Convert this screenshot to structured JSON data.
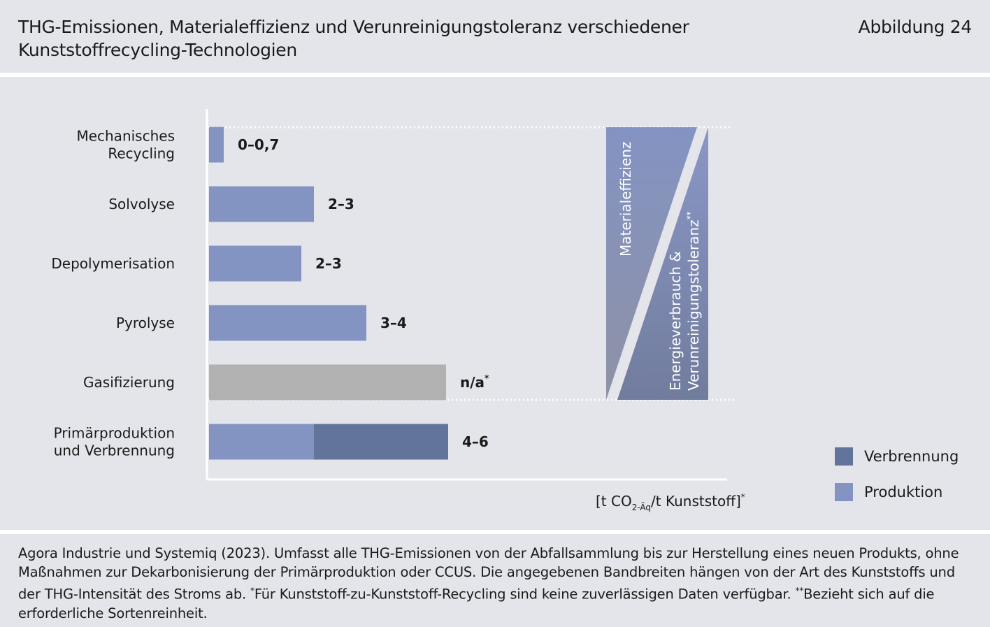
{
  "header": {
    "title": "THG-Emissionen, Materialeffizienz und Verunreinigungstoleranz verschiedener Kunststoffrecycling-Technologien",
    "figure_label": "Abbildung 24"
  },
  "chart_data": {
    "type": "bar",
    "orientation": "horizontal",
    "categories": [
      [
        "Mechanisches",
        "Recycling"
      ],
      [
        "Solvolyse"
      ],
      [
        "Depolymerisation"
      ],
      [
        "Pyrolyse"
      ],
      [
        "Gasifizierung"
      ],
      [
        "Primärproduktion",
        "und Verbrennung"
      ]
    ],
    "value_labels": [
      "0–0,7",
      "2–3",
      "2–3",
      "3–4",
      "n/a",
      "4–6"
    ],
    "value_label_superscripts": [
      "",
      "",
      "",
      "",
      "*",
      ""
    ],
    "series": [
      {
        "name": "Produktion",
        "values": [
          0.35,
          2.5,
          2.2,
          3.75,
          null,
          2.5
        ]
      },
      {
        "name": "Verbrennung",
        "values": [
          0,
          0,
          0,
          0,
          null,
          3.2
        ]
      }
    ],
    "na_bar_value": 5.65,
    "xlim": [
      0,
      12
    ],
    "unit_label": {
      "prefix": "[t CO",
      "subscript": "2-Äq",
      "suffix": "/t Kunststoff]",
      "superscript": "*"
    },
    "annotations": {
      "left": "Materialeffizienz",
      "right_line1": "Energieverbrauch &",
      "right_line2": "Verunreinigungstoleranz",
      "right_superscript": "**"
    },
    "legend_position": "bottom-right",
    "grid": false
  },
  "legend": [
    {
      "label": "Verbrennung",
      "color": "#62749a"
    },
    {
      "label": "Produktion",
      "color": "#8393c2"
    }
  ],
  "colors": {
    "produktion": "#8393c2",
    "verbrennung": "#62749a",
    "na": "#b1b1b1",
    "background": "#e3e5ea"
  },
  "footer": {
    "source": "Agora Industrie und Systemiq (2023). Umfasst alle THG-Emissionen von der Abfallsammlung bis zur Herstellung eines neuen Produkts, ohne Maßnahmen zur Dekarbonisierung der Primärproduktion oder CCUS. Die angegebenen Bandbreiten hängen von der Art des Kunststoffs und der THG-Intensität des Stroms ab. ",
    "note1_mark": "*",
    "note1": "Für Kunststoff-zu-Kunststoff-Recycling sind keine zuverlässigen Daten verfügbar. ",
    "note2_mark": "**",
    "note2": "Bezieht sich auf die erforderliche Sortenreinheit."
  }
}
